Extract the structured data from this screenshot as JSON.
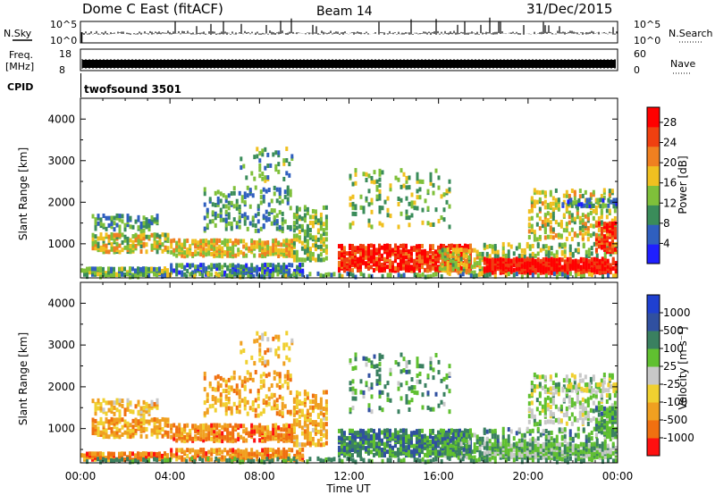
{
  "header": {
    "title": "Dome C East (fitACF)",
    "beam": "Beam 14",
    "date": "31/Dec/2015"
  },
  "panels": {
    "nsky": {
      "label": "N.Sky",
      "tick_hi": "10^5",
      "tick_lo": "10^0",
      "right_label": "N.Search"
    },
    "freq": {
      "label_line1": "Freq.",
      "label_line2": "[MHz]",
      "tick_hi": "18",
      "tick_lo": "8",
      "right_tick_hi": "60",
      "right_tick_lo": "0",
      "right_label": "Nave"
    },
    "cpid": {
      "label": "CPID",
      "program": "twofsound 3501"
    }
  },
  "colors": {
    "power": [
      "#1f1fff",
      "#2f5fbf",
      "#3a8c5a",
      "#7fc03a",
      "#f0c020",
      "#f08020",
      "#f04010",
      "#ff0000"
    ],
    "velocity": [
      "#ff1010",
      "#f07010",
      "#f0a020",
      "#f0d030",
      "#c8c8c8",
      "#60c030",
      "#3a8060",
      "#3050a0",
      "#1f40d0"
    ]
  },
  "chart_data": [
    {
      "type": "heatmap",
      "name": "power",
      "xlabel": "",
      "ylabel": "Slant Range [km]",
      "xlim": [
        "00:00",
        "00:00"
      ],
      "ylim": [
        180,
        4500
      ],
      "yticks": [
        1000,
        2000,
        3000,
        4000
      ],
      "grid": false,
      "colorbar": {
        "label": "Power [dB]",
        "ticks": [
          4,
          8,
          12,
          16,
          20,
          24,
          28
        ],
        "range": [
          0,
          31
        ]
      }
    },
    {
      "type": "heatmap",
      "name": "velocity",
      "xlabel": "Time UT",
      "ylabel": "Slant Range [km]",
      "xlim": [
        "00:00",
        "00:00"
      ],
      "xticks": [
        "00:00",
        "04:00",
        "08:00",
        "12:00",
        "16:00",
        "20:00",
        "00:00"
      ],
      "ylim": [
        180,
        4500
      ],
      "yticks": [
        1000,
        2000,
        3000,
        4000
      ],
      "grid": false,
      "colorbar": {
        "label": "Velocity [m s⁻¹]",
        "ticks": [
          "1000",
          "500",
          "100",
          "25",
          "-25",
          "-100",
          "-500",
          "-1000"
        ]
      }
    }
  ]
}
